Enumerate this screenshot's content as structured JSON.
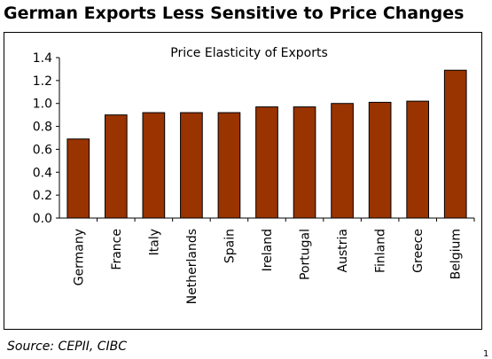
{
  "title": "German Exports Less Sensitive to Price Changes",
  "source": "Source: CEPII, CIBC",
  "page_number": "1",
  "colors": {
    "bar": "#993300",
    "bar_stroke": "#000000",
    "axis": "#000000"
  },
  "chart_data": {
    "type": "bar",
    "title": "Price Elasticity of Exports",
    "xlabel": "",
    "ylabel": "",
    "categories": [
      "Germany",
      "France",
      "Italy",
      "Netherlands",
      "Spain",
      "Ireland",
      "Portugal",
      "Austria",
      "Finland",
      "Greece",
      "Belgium"
    ],
    "values": [
      0.69,
      0.9,
      0.92,
      0.92,
      0.92,
      0.97,
      0.97,
      1.0,
      1.01,
      1.02,
      1.29
    ],
    "ylim": [
      0,
      1.4
    ],
    "yticks": [
      0.0,
      0.2,
      0.4,
      0.6,
      0.8,
      1.0,
      1.2,
      1.4
    ],
    "ytick_labels": [
      "0.0",
      "0.2",
      "0.4",
      "0.6",
      "0.8",
      "1.0",
      "1.2",
      "1.4"
    ],
    "grid": false,
    "legend": "none"
  }
}
